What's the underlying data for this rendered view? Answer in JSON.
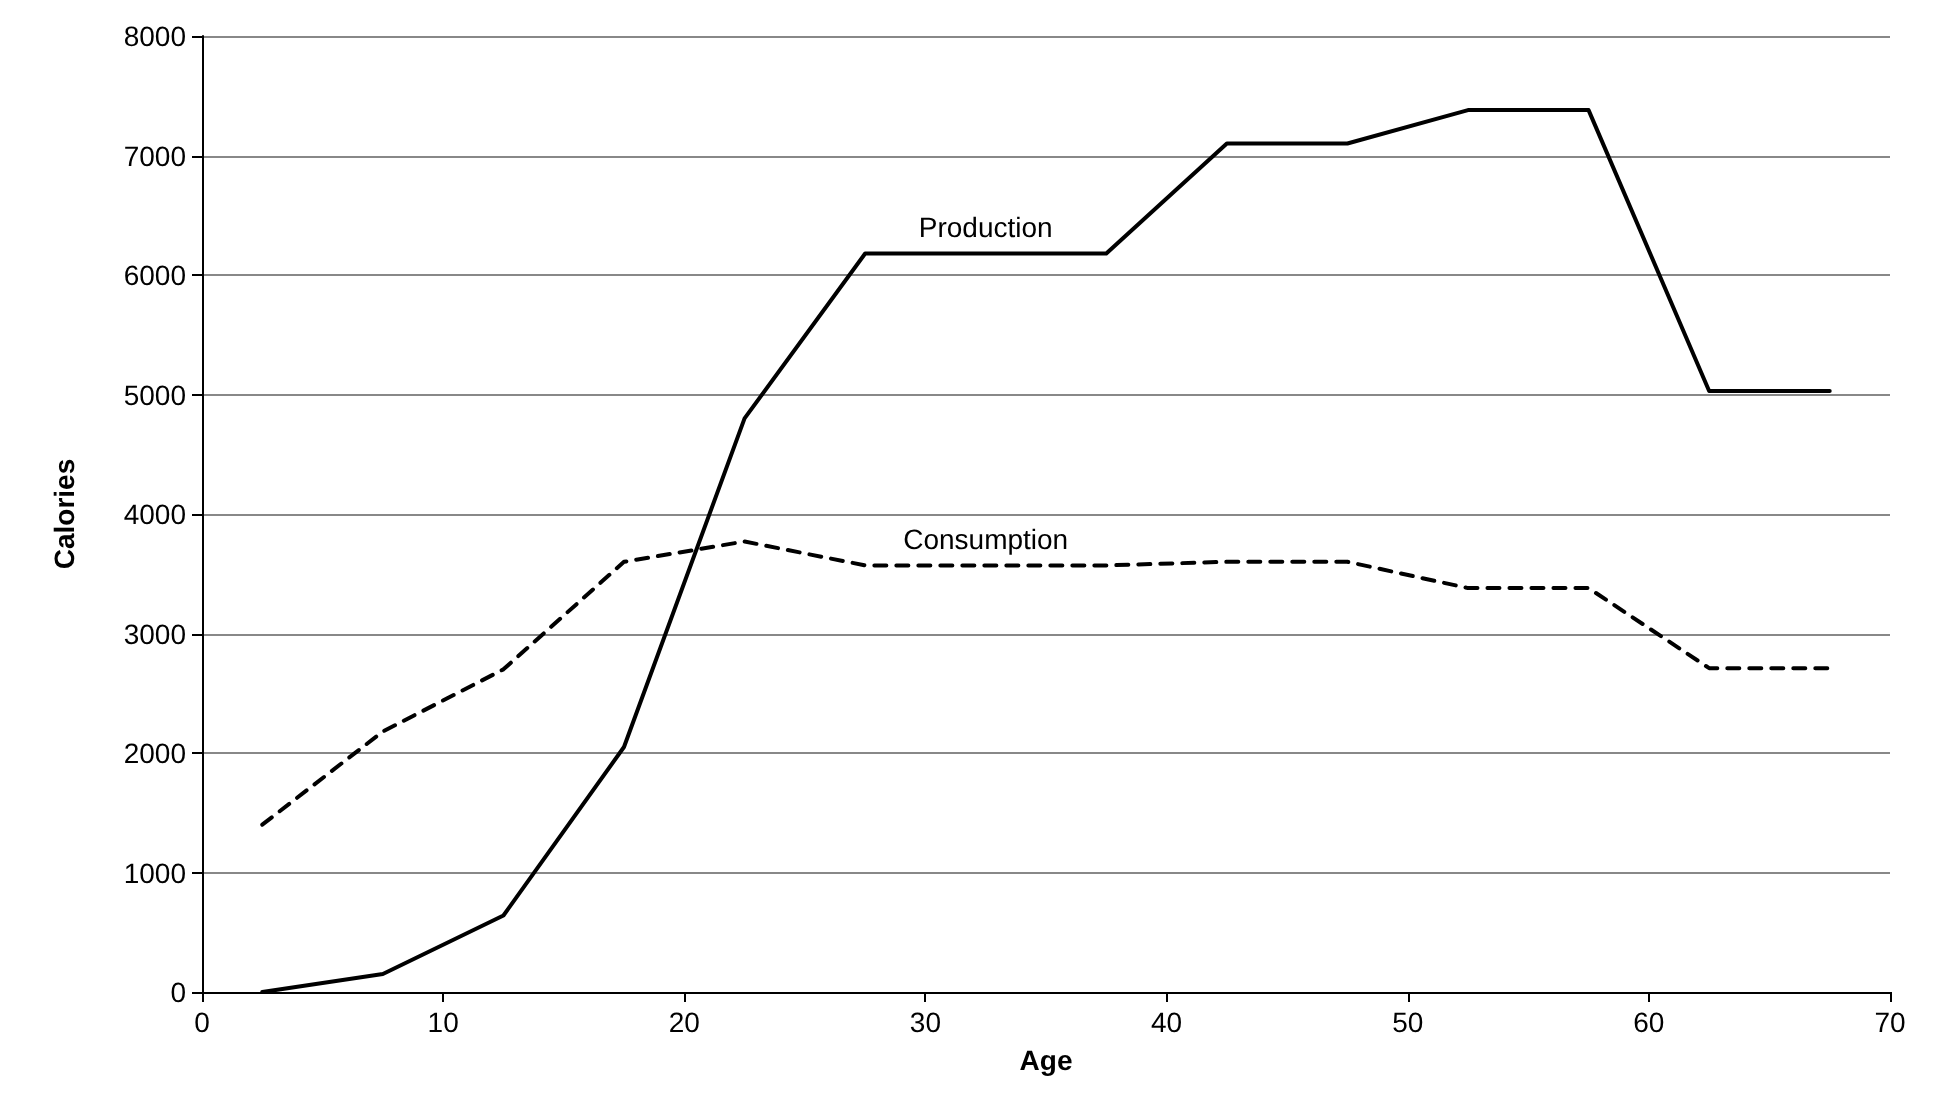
{
  "chart_data": {
    "type": "line",
    "xlabel": "Age",
    "ylabel": "Calories",
    "x": [
      2.5,
      7.5,
      12.5,
      17.5,
      22.5,
      27.5,
      32.5,
      37.5,
      42.5,
      47.5,
      52.5,
      57.5,
      62.5,
      67.5
    ],
    "series": [
      {
        "name": "Production",
        "color": "#000000",
        "line_style": "solid",
        "values": [
          0,
          150,
          640,
          2050,
          4800,
          6180,
          6180,
          6180,
          7100,
          7100,
          7380,
          7380,
          5030,
          5030
        ]
      },
      {
        "name": "Consumption",
        "color": "#000000",
        "line_style": "dashed",
        "values": [
          1400,
          2180,
          2700,
          3600,
          3770,
          3570,
          3570,
          3570,
          3600,
          3600,
          3380,
          3380,
          2710,
          2710
        ]
      }
    ],
    "xlim": [
      0,
      70
    ],
    "xticks": [
      0,
      10,
      20,
      30,
      40,
      50,
      60,
      70
    ],
    "ylim": [
      0,
      8000
    ],
    "yticks": [
      0,
      1000,
      2000,
      3000,
      4000,
      5000,
      6000,
      7000,
      8000
    ],
    "grid": "y",
    "legend": false,
    "marker": "none"
  }
}
